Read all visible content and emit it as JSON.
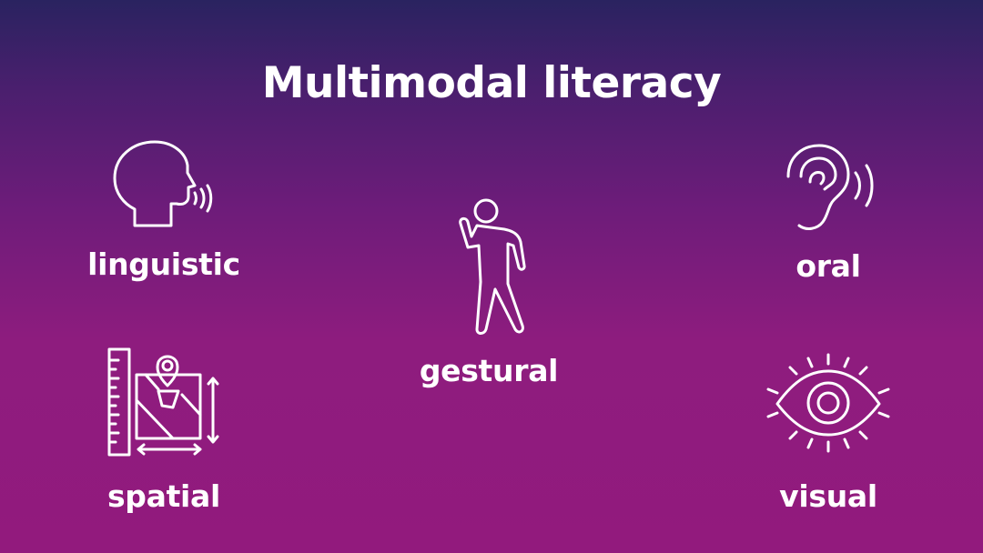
{
  "slide": {
    "title": "Multimodal literacy",
    "modes": [
      {
        "label": "linguistic",
        "icon": "speaking-head-icon"
      },
      {
        "label": "gestural",
        "icon": "gesturing-person-icon"
      },
      {
        "label": "oral",
        "icon": "ear-sound-icon"
      },
      {
        "label": "spatial",
        "icon": "map-ruler-icon"
      },
      {
        "label": "visual",
        "icon": "radiating-eye-icon"
      }
    ]
  },
  "colors": {
    "gradient_top": "#2a2360",
    "gradient_bottom": "#921a7d",
    "foreground": "#ffffff"
  }
}
